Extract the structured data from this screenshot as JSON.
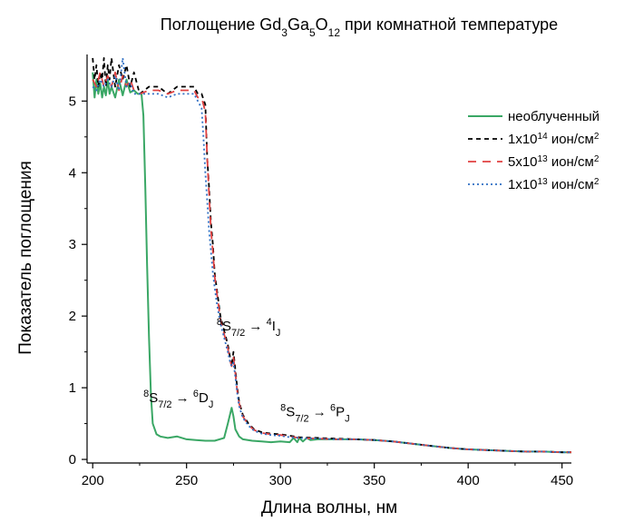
{
  "chart_data": {
    "type": "line",
    "title": {
      "main": "Поглощение Gd",
      "sub1": "3",
      "mid1": "Ga",
      "sub2": "5",
      "mid2": "O",
      "sub3": "12",
      "tail": " при комнатной температуре"
    },
    "xlabel": "Длина волны, нм",
    "ylabel": "Показатель поглощения",
    "xlim": [
      197,
      455
    ],
    "ylim": [
      -0.05,
      5.65
    ],
    "xticks": [
      200,
      250,
      300,
      350,
      400,
      450
    ],
    "yticks": [
      0,
      1,
      2,
      3,
      4,
      5
    ],
    "legend_position": "top-right",
    "series": [
      {
        "name": "необлученный",
        "color": "#3aa765",
        "dash": "solid",
        "x": [
          200,
          201,
          202,
          203,
          204,
          205,
          206,
          207,
          208,
          209,
          210,
          212,
          214,
          216,
          218,
          220,
          222,
          224,
          226,
          227,
          228,
          229,
          230,
          231,
          232,
          234,
          236,
          240,
          245,
          250,
          255,
          260,
          265,
          270,
          272,
          274,
          275,
          276,
          278,
          280,
          285,
          290,
          295,
          300,
          305,
          307,
          309,
          310,
          312,
          314,
          316,
          320,
          330,
          340,
          350,
          360,
          370,
          380,
          390,
          400,
          410,
          420,
          430,
          440,
          450,
          455
        ],
        "y": [
          5.4,
          5.05,
          5.3,
          5.1,
          5.25,
          5.05,
          5.2,
          5.08,
          5.3,
          5.1,
          5.2,
          5.05,
          5.3,
          5.08,
          5.3,
          5.12,
          5.15,
          5.1,
          5.1,
          4.8,
          3.8,
          2.7,
          1.7,
          0.9,
          0.5,
          0.35,
          0.32,
          0.3,
          0.32,
          0.28,
          0.27,
          0.26,
          0.26,
          0.3,
          0.5,
          0.72,
          0.6,
          0.42,
          0.32,
          0.28,
          0.26,
          0.25,
          0.24,
          0.25,
          0.24,
          0.3,
          0.24,
          0.3,
          0.25,
          0.3,
          0.27,
          0.28,
          0.28,
          0.28,
          0.27,
          0.25,
          0.22,
          0.19,
          0.16,
          0.14,
          0.13,
          0.12,
          0.11,
          0.11,
          0.1,
          0.1
        ]
      },
      {
        "name": "1x10^14 ион/см^2",
        "label_base": "1x10",
        "label_exp": "14",
        "label_unit": " ион/см",
        "label_unit_exp": "2",
        "color": "#000000",
        "dash": "5,4",
        "x": [
          200,
          201,
          202,
          203,
          204,
          205,
          206,
          207,
          208,
          209,
          210,
          212,
          214,
          216,
          218,
          220,
          222,
          225,
          230,
          235,
          240,
          245,
          250,
          254,
          256,
          258,
          260,
          261,
          262,
          263,
          264,
          265,
          266,
          267,
          268,
          270,
          272,
          273,
          274,
          275,
          276,
          277,
          278,
          280,
          283,
          286,
          290,
          295,
          300,
          305,
          310,
          320,
          330,
          340,
          350,
          360,
          370,
          380,
          390,
          400,
          410,
          420,
          430,
          440,
          450,
          455
        ],
        "y": [
          5.6,
          5.3,
          5.5,
          5.2,
          5.4,
          5.3,
          5.6,
          5.2,
          5.5,
          5.3,
          5.6,
          5.2,
          5.5,
          5.3,
          5.5,
          5.2,
          5.4,
          5.1,
          5.2,
          5.2,
          5.1,
          5.2,
          5.2,
          5.2,
          5.1,
          5.1,
          4.95,
          4.2,
          3.8,
          3.3,
          3.0,
          2.6,
          2.4,
          2.2,
          2.0,
          1.8,
          1.6,
          1.45,
          1.3,
          1.5,
          1.25,
          1.0,
          0.8,
          0.62,
          0.5,
          0.42,
          0.38,
          0.36,
          0.35,
          0.33,
          0.31,
          0.3,
          0.29,
          0.28,
          0.27,
          0.25,
          0.22,
          0.19,
          0.16,
          0.14,
          0.13,
          0.12,
          0.11,
          0.11,
          0.1,
          0.1
        ]
      },
      {
        "name": "5x10^13 ион/см^2",
        "label_base": "5x10",
        "label_exp": "13",
        "label_unit": " ион/см",
        "label_unit_exp": "2",
        "color": "#e04040",
        "dash": "9,7",
        "x": [
          200,
          202,
          204,
          206,
          208,
          210,
          212,
          214,
          216,
          218,
          220,
          222,
          225,
          230,
          235,
          240,
          245,
          250,
          254,
          256,
          258,
          260,
          261,
          262,
          263,
          264,
          265,
          266,
          267,
          268,
          270,
          272,
          273,
          274,
          275,
          276,
          277,
          278,
          280,
          283,
          286,
          290,
          295,
          300,
          305,
          310,
          320,
          330,
          340,
          350,
          360,
          370,
          380,
          390,
          400,
          410,
          420,
          430,
          440,
          450,
          455
        ],
        "y": [
          5.3,
          5.2,
          5.4,
          5.2,
          5.35,
          5.2,
          5.4,
          5.15,
          5.35,
          5.2,
          5.3,
          5.15,
          5.1,
          5.15,
          5.15,
          5.1,
          5.15,
          5.15,
          5.15,
          5.05,
          5.05,
          4.85,
          4.2,
          3.7,
          3.2,
          2.9,
          2.55,
          2.35,
          2.15,
          1.95,
          1.75,
          1.55,
          1.4,
          1.3,
          1.42,
          1.2,
          0.95,
          0.78,
          0.6,
          0.48,
          0.41,
          0.37,
          0.35,
          0.34,
          0.32,
          0.3,
          0.29,
          0.28,
          0.28,
          0.27,
          0.25,
          0.22,
          0.19,
          0.16,
          0.14,
          0.13,
          0.12,
          0.11,
          0.11,
          0.1,
          0.1
        ]
      },
      {
        "name": "1x10^13 ион/см^2",
        "label_base": "1x10",
        "label_exp": "13",
        "label_unit": " ион/см",
        "label_unit_exp": "2",
        "color": "#2f6fc4",
        "dash": "2,3",
        "x": [
          200,
          202,
          204,
          206,
          208,
          210,
          212,
          214,
          216,
          218,
          220,
          222,
          225,
          230,
          235,
          240,
          245,
          250,
          254,
          256,
          258,
          259,
          260,
          261,
          262,
          263,
          264,
          265,
          266,
          267,
          268,
          270,
          272,
          273,
          274,
          275,
          276,
          277,
          278,
          280,
          283,
          286,
          290,
          295,
          300,
          305,
          310,
          320,
          330,
          340,
          350,
          360,
          370,
          380,
          390,
          400,
          410,
          420,
          430,
          440,
          450,
          455
        ],
        "y": [
          5.2,
          5.15,
          5.3,
          5.2,
          5.3,
          5.2,
          5.35,
          5.15,
          5.6,
          5.2,
          5.25,
          5.1,
          5.1,
          5.1,
          5.1,
          5.05,
          5.1,
          5.1,
          5.1,
          5.0,
          4.9,
          4.5,
          4.0,
          3.6,
          3.2,
          2.9,
          2.6,
          2.4,
          2.2,
          2.05,
          1.9,
          1.7,
          1.5,
          1.38,
          1.3,
          1.35,
          1.15,
          0.92,
          0.74,
          0.58,
          0.47,
          0.4,
          0.36,
          0.34,
          0.33,
          0.31,
          0.3,
          0.29,
          0.28,
          0.28,
          0.27,
          0.25,
          0.22,
          0.19,
          0.16,
          0.14,
          0.13,
          0.12,
          0.11,
          0.11,
          0.1,
          0.1
        ]
      }
    ],
    "annotations": [
      {
        "x": 227,
        "y": 0.8,
        "sup1": "8",
        "base1": "S",
        "sub1": "7/2",
        "arrow": " → ",
        "sup2": "6",
        "base2": "D",
        "sub2": "J"
      },
      {
        "x": 266,
        "y": 1.8,
        "sup1": "8",
        "base1": "S",
        "sub1": "7/2",
        "arrow": " → ",
        "sup2": "4",
        "base2": "I",
        "sub2": "J"
      },
      {
        "x": 300,
        "y": 0.6,
        "sup1": "8",
        "base1": "S",
        "sub1": "7/2",
        "arrow": " → ",
        "sup2": "6",
        "base2": "P",
        "sub2": "J"
      }
    ]
  }
}
